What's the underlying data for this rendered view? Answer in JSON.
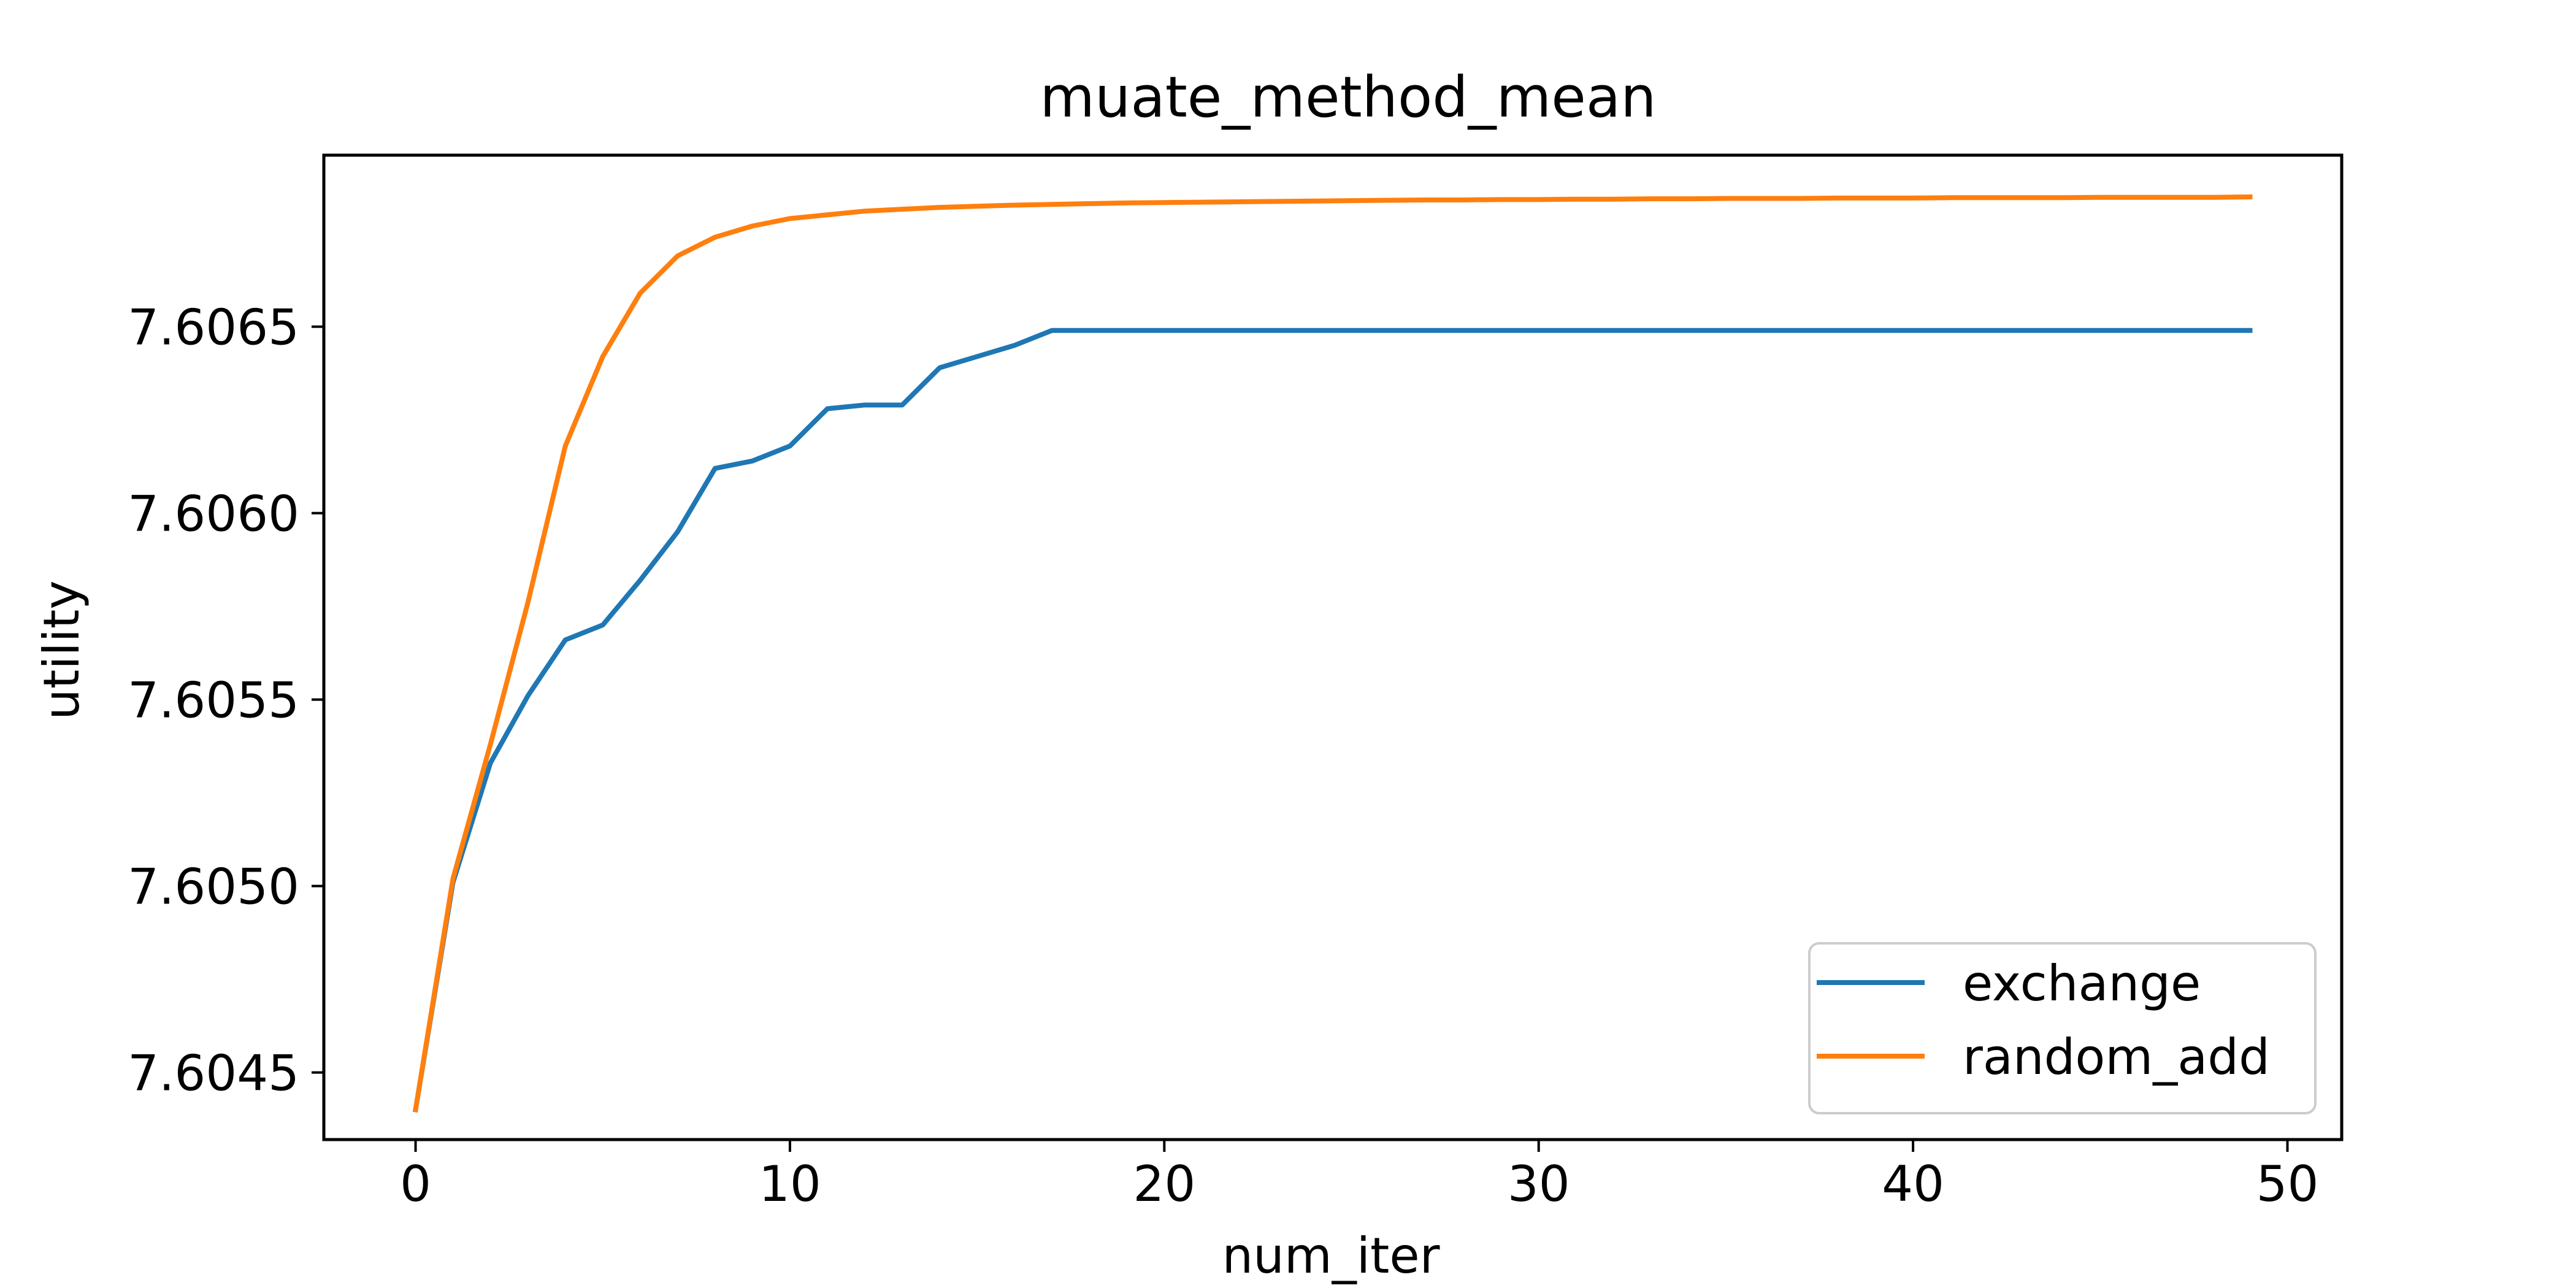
{
  "chart_data": {
    "type": "line",
    "title": "muate_method_mean",
    "xlabel": "num_iter",
    "ylabel": "utility",
    "xlim": [
      -2.45,
      51.45
    ],
    "ylim": [
      7.60432,
      7.60696
    ],
    "xticks": [
      0,
      10,
      20,
      30,
      40,
      50
    ],
    "xtick_labels": [
      "0",
      "10",
      "20",
      "30",
      "40",
      "50"
    ],
    "yticks": [
      7.6045,
      7.605,
      7.6055,
      7.606,
      7.6065
    ],
    "ytick_labels": [
      "7.6045",
      "7.6050",
      "7.6055",
      "7.6060",
      "7.6065"
    ],
    "grid": false,
    "legend": "lower-right",
    "x": [
      0,
      1,
      2,
      3,
      4,
      5,
      6,
      7,
      8,
      9,
      10,
      11,
      12,
      13,
      14,
      15,
      16,
      17,
      18,
      19,
      20,
      21,
      22,
      23,
      24,
      25,
      26,
      27,
      28,
      29,
      30,
      31,
      32,
      33,
      34,
      35,
      36,
      37,
      38,
      39,
      40,
      41,
      42,
      43,
      44,
      45,
      46,
      47,
      48,
      49
    ],
    "series": [
      {
        "name": "exchange",
        "color": "#1f77b4",
        "values": [
          7.6044,
          7.60501,
          7.60533,
          7.60551,
          7.60566,
          7.6057,
          7.60582,
          7.60595,
          7.60612,
          7.60614,
          7.60618,
          7.60628,
          7.60629,
          7.60629,
          7.60639,
          7.60642,
          7.60645,
          7.60649,
          7.60649,
          7.60649,
          7.60649,
          7.60649,
          7.60649,
          7.60649,
          7.60649,
          7.60649,
          7.60649,
          7.60649,
          7.60649,
          7.60649,
          7.60649,
          7.60649,
          7.60649,
          7.60649,
          7.60649,
          7.60649,
          7.60649,
          7.60649,
          7.60649,
          7.60649,
          7.60649,
          7.60649,
          7.60649,
          7.60649,
          7.60649,
          7.60649,
          7.60649,
          7.60649,
          7.60649,
          7.60649
        ]
      },
      {
        "name": "random_add",
        "color": "#ff7f0e",
        "values": [
          7.6044,
          7.60502,
          7.60538,
          7.60576,
          7.60618,
          7.60642,
          7.60659,
          7.60669,
          7.60674,
          7.60677,
          7.60679,
          7.6068,
          7.60681,
          7.606815,
          7.60682,
          7.606823,
          7.606826,
          7.606828,
          7.60683,
          7.606832,
          7.606833,
          7.606834,
          7.606835,
          7.606836,
          7.606837,
          7.606838,
          7.606839,
          7.60684,
          7.60684,
          7.606841,
          7.606841,
          7.606842,
          7.606842,
          7.606843,
          7.606843,
          7.606844,
          7.606844,
          7.606844,
          7.606845,
          7.606845,
          7.606845,
          7.606846,
          7.606846,
          7.606846,
          7.606846,
          7.606847,
          7.606847,
          7.606847,
          7.606847,
          7.606848
        ]
      }
    ]
  }
}
